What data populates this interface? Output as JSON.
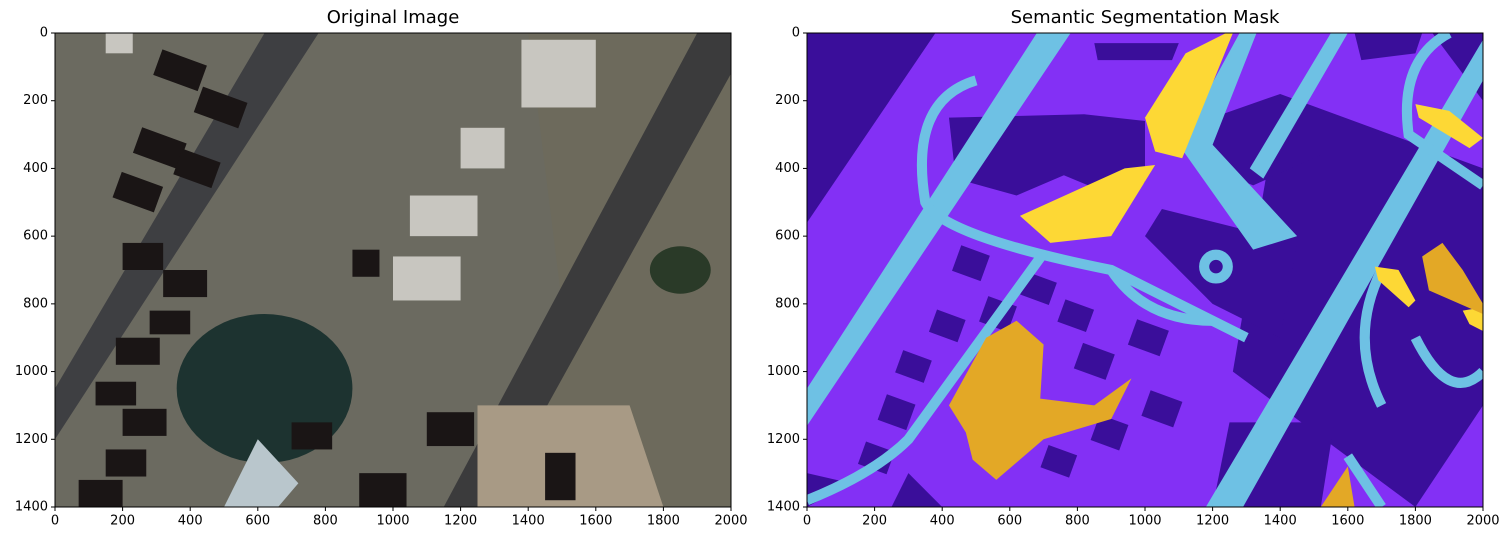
{
  "chart_data": [
    {
      "type": "image",
      "title": "Original Image",
      "xlim": [
        0,
        2000
      ],
      "ylim": [
        1400,
        0
      ],
      "xticks": [
        0,
        200,
        400,
        600,
        800,
        1000,
        1200,
        1400,
        1600,
        1800,
        2000
      ],
      "yticks": [
        0,
        200,
        400,
        600,
        800,
        1000,
        1200,
        1400
      ]
    },
    {
      "type": "image",
      "title": "Semantic Segmentation Mask",
      "xlim": [
        0,
        2000
      ],
      "ylim": [
        1400,
        0
      ],
      "xticks": [
        0,
        200,
        400,
        600,
        800,
        1000,
        1200,
        1400,
        1600,
        1800,
        2000
      ],
      "yticks": [
        0,
        200,
        400,
        600,
        800,
        1000,
        1200,
        1400
      ]
    }
  ]
}
